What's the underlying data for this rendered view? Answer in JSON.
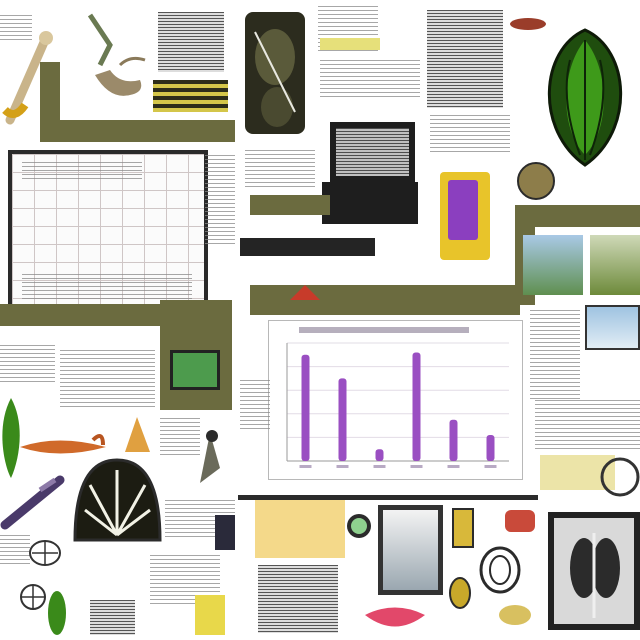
{
  "colors": {
    "olive": "#6b6b3f",
    "bar": "#9a4fc2",
    "leaf_green": "#2f7d1a",
    "dark": "#2b2b2b",
    "purple_jar": "#8b3fbf",
    "orange_item": "#d06a2a"
  },
  "icons": [
    "bone-icon",
    "leaf-icon",
    "carrot-icon",
    "fly-icon",
    "bird-icon",
    "glass-dome-icon",
    "jar-icon",
    "onion-icon",
    "lightbulb-icon",
    "shield-icon"
  ],
  "chart_data": {
    "type": "bar",
    "title": "",
    "xlabel": "",
    "ylabel": "",
    "categories": [
      "",
      "",
      "",
      "",
      "",
      ""
    ],
    "values": [
      90,
      70,
      10,
      92,
      35,
      22
    ],
    "ylim": [
      0,
      100
    ]
  }
}
